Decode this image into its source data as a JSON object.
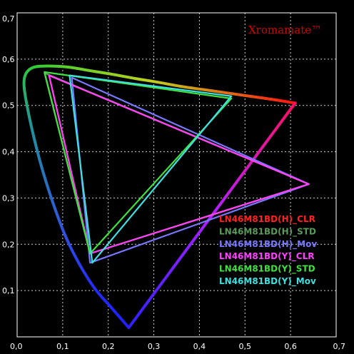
{
  "chart_data": {
    "type": "line",
    "brand": "Xromamate™",
    "xlim": [
      0,
      0.7
    ],
    "ylim": [
      0,
      0.7
    ],
    "grid": true,
    "legend_position": "bottom-right",
    "x_ticks": [
      "0,0",
      "0,1",
      "0,2",
      "0,3",
      "0,4",
      "0,5",
      "0,6",
      "0,7"
    ],
    "y_ticks": [
      "0,1",
      "0,2",
      "0,3",
      "0,4",
      "0,5",
      "0,6",
      "0,7"
    ],
    "locus": [
      [
        0.245,
        0.02
      ],
      [
        0.205,
        0.065
      ],
      [
        0.17,
        0.105
      ],
      [
        0.135,
        0.16
      ],
      [
        0.105,
        0.22
      ],
      [
        0.075,
        0.3
      ],
      [
        0.05,
        0.38
      ],
      [
        0.03,
        0.46
      ],
      [
        0.018,
        0.52
      ],
      [
        0.015,
        0.55
      ],
      [
        0.02,
        0.57
      ],
      [
        0.035,
        0.582
      ],
      [
        0.06,
        0.585
      ],
      [
        0.11,
        0.583
      ],
      [
        0.16,
        0.575
      ],
      [
        0.21,
        0.567
      ],
      [
        0.26,
        0.558
      ],
      [
        0.31,
        0.55
      ],
      [
        0.36,
        0.541
      ],
      [
        0.41,
        0.534
      ],
      [
        0.46,
        0.527
      ],
      [
        0.51,
        0.52
      ],
      [
        0.56,
        0.513
      ],
      [
        0.61,
        0.505
      ]
    ],
    "series": [
      {
        "name": "LN46M81BD(H)_CLR",
        "color": "#ff2020",
        "points": [
          [
            0.64,
            0.33
          ],
          [
            0.07,
            0.565
          ],
          [
            0.16,
            0.18
          ]
        ]
      },
      {
        "name": "LN46M81BD(H)_STD",
        "color": "#5a9a5a",
        "points": [
          [
            0.64,
            0.33
          ],
          [
            0.06,
            0.57
          ],
          [
            0.16,
            0.18
          ]
        ]
      },
      {
        "name": "LN46M81BD(H)_Mov",
        "color": "#7878ff",
        "points": [
          [
            0.64,
            0.33
          ],
          [
            0.12,
            0.56
          ],
          [
            0.16,
            0.16
          ]
        ]
      },
      {
        "name": "LN46M81BD(Y)_CLR",
        "color": "#ff40ff",
        "points": [
          [
            0.64,
            0.33
          ],
          [
            0.07,
            0.565
          ],
          [
            0.16,
            0.18
          ]
        ]
      },
      {
        "name": "LN46M81BD(Y)_STD",
        "color": "#40e040",
        "points": [
          [
            0.47,
            0.515
          ],
          [
            0.06,
            0.572
          ],
          [
            0.16,
            0.18
          ]
        ]
      },
      {
        "name": "LN46M81BD(Y)_Mov",
        "color": "#40e0e0",
        "points": [
          [
            0.47,
            0.52
          ],
          [
            0.115,
            0.565
          ],
          [
            0.165,
            0.16
          ]
        ]
      }
    ]
  }
}
